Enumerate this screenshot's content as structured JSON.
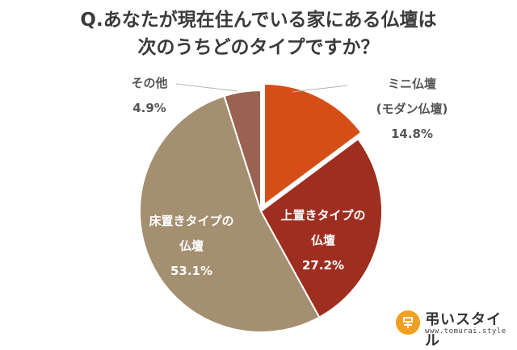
{
  "chart_data": {
    "type": "pie",
    "title_lines": [
      "Q.あなたが現在住んでいる家にある仏壇は",
      "次のうちどのタイプですか？"
    ],
    "slices": [
      {
        "label_lines": [
          "ミニ仏壇",
          "(モダン仏壇)"
        ],
        "value": 14.8,
        "value_label": "14.8%",
        "color": "#D64E17",
        "exploded": true
      },
      {
        "label_lines": [
          "上置きタイプの",
          "仏壇"
        ],
        "value": 27.2,
        "value_label": "27.2%",
        "color": "#9E2E20",
        "exploded": false
      },
      {
        "label_lines": [
          "床置きタイプの",
          "仏壇"
        ],
        "value": 53.1,
        "value_label": "53.1%",
        "color": "#A48F70",
        "exploded": false
      },
      {
        "label_lines": [
          "その他"
        ],
        "value": 4.9,
        "value_label": "4.9%",
        "color": "#9A6250",
        "exploded": false
      }
    ]
  },
  "logo": {
    "name": "弔いスタイル",
    "url": "www.tomurai.style",
    "mark_color": "#F0A020"
  }
}
